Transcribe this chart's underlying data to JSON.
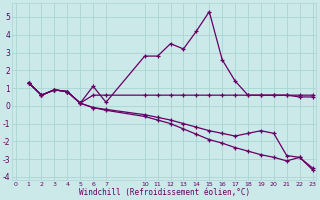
{
  "xlabel": "Windchill (Refroidissement éolien,°C)",
  "background_color": "#cce9e9",
  "grid_color": "#aad4d4",
  "line_color": "#660066",
  "xlim": [
    -0.3,
    23.3
  ],
  "ylim": [
    -4.2,
    5.8
  ],
  "yticks": [
    -4,
    -3,
    -2,
    -1,
    0,
    1,
    2,
    3,
    4,
    5
  ],
  "xticks": [
    0,
    1,
    2,
    3,
    4,
    5,
    6,
    7,
    10,
    11,
    12,
    13,
    14,
    15,
    16,
    17,
    18,
    19,
    20,
    21,
    22,
    23
  ],
  "series": [
    {
      "x": [
        1,
        2,
        3,
        4,
        5,
        6,
        7,
        10,
        11,
        12,
        13,
        14,
        15,
        16,
        17,
        18,
        19,
        20,
        21,
        22,
        23
      ],
      "y": [
        1.3,
        0.6,
        0.9,
        0.8,
        0.15,
        1.1,
        0.2,
        2.8,
        2.8,
        3.5,
        3.2,
        4.2,
        5.3,
        2.6,
        1.4,
        0.6,
        0.6,
        0.6,
        0.6,
        0.6,
        0.6
      ]
    },
    {
      "x": [
        1,
        2,
        3,
        4,
        5,
        6,
        7,
        10,
        11,
        12,
        13,
        14,
        15,
        16,
        17,
        18,
        19,
        20,
        21,
        22,
        23
      ],
      "y": [
        1.3,
        0.6,
        0.9,
        0.8,
        0.15,
        0.6,
        0.6,
        0.6,
        0.6,
        0.6,
        0.6,
        0.6,
        0.6,
        0.6,
        0.6,
        0.6,
        0.6,
        0.6,
        0.6,
        0.5,
        0.5
      ]
    },
    {
      "x": [
        1,
        2,
        3,
        4,
        5,
        6,
        7,
        10,
        11,
        12,
        13,
        14,
        15,
        16,
        17,
        18,
        19,
        20,
        21,
        22,
        23
      ],
      "y": [
        1.3,
        0.6,
        0.9,
        0.8,
        0.15,
        -0.1,
        -0.2,
        -0.5,
        -0.65,
        -0.8,
        -1.0,
        -1.2,
        -1.4,
        -1.55,
        -1.7,
        -1.55,
        -1.4,
        -1.55,
        -2.8,
        -2.9,
        -3.5
      ]
    },
    {
      "x": [
        1,
        2,
        3,
        4,
        5,
        6,
        7,
        10,
        11,
        12,
        13,
        14,
        15,
        16,
        17,
        18,
        19,
        20,
        21,
        22,
        23
      ],
      "y": [
        1.3,
        0.6,
        0.9,
        0.8,
        0.15,
        -0.1,
        -0.25,
        -0.6,
        -0.8,
        -1.0,
        -1.3,
        -1.6,
        -1.9,
        -2.1,
        -2.35,
        -2.55,
        -2.75,
        -2.9,
        -3.1,
        -2.9,
        -3.6
      ]
    }
  ]
}
